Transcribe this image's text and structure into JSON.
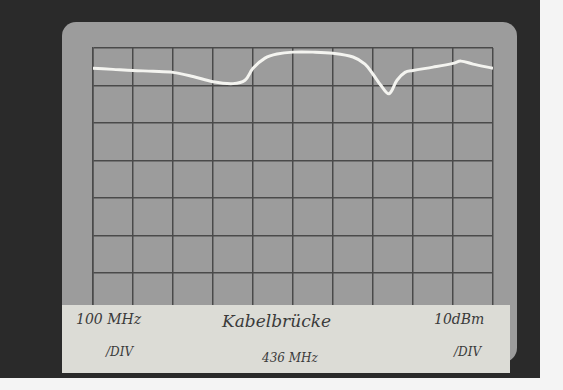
{
  "chart_data": {
    "type": "line",
    "x": [
      0,
      0.5,
      1,
      1.5,
      2,
      2.5,
      3,
      3.5,
      3.8,
      4,
      4.3,
      4.6,
      5,
      5.5,
      6,
      6.5,
      6.8,
      7,
      7.2,
      7.4,
      7.6,
      7.8,
      8,
      8.5,
      9,
      9.2,
      9.5,
      10
    ],
    "values": [
      7.46,
      7.43,
      7.4,
      7.38,
      7.35,
      7.24,
      7.1,
      7.05,
      7.14,
      7.46,
      7.73,
      7.84,
      7.89,
      7.89,
      7.86,
      7.76,
      7.57,
      7.3,
      7.0,
      6.78,
      7.14,
      7.35,
      7.4,
      7.49,
      7.59,
      7.65,
      7.57,
      7.46
    ],
    "color": "#f4f4f0",
    "xlim": [
      0,
      10
    ],
    "xticks": [
      0,
      1,
      2,
      3,
      4,
      5,
      6,
      7,
      8,
      9,
      10
    ],
    "ylim": [
      0,
      8
    ],
    "yticks": [
      0,
      1,
      2,
      3,
      4,
      5,
      6,
      7,
      8
    ],
    "grid": true,
    "tick_labels": false,
    "annotations": [
      "100 MHz",
      "/DIV",
      "Kabelbrücke",
      "436 MHz",
      "10dBm",
      "/DIV"
    ]
  }
}
